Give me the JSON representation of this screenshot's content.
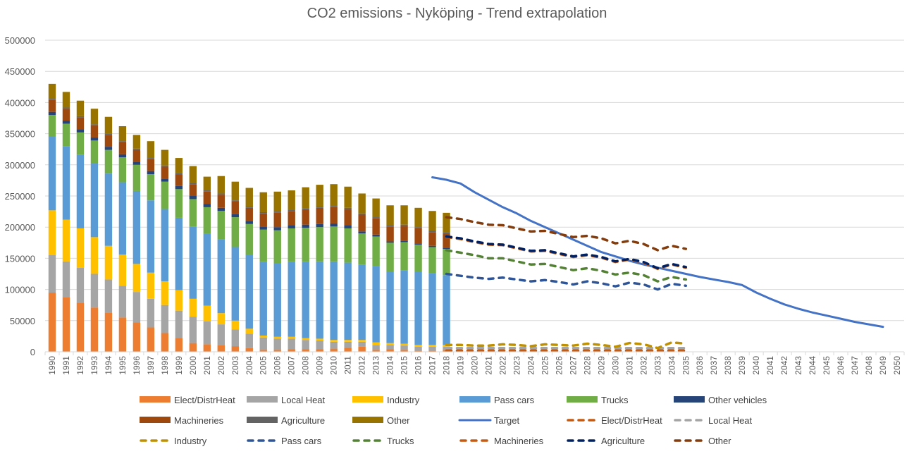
{
  "chart_data": {
    "type": "bar",
    "title": "CO2 emissions - Nyköping - Trend extrapolation",
    "xlabel": "",
    "ylabel": "",
    "ylim": [
      0,
      500000
    ],
    "yticks": [
      0,
      50000,
      100000,
      150000,
      200000,
      250000,
      300000,
      350000,
      400000,
      450000,
      500000
    ],
    "grid": true,
    "legend_position": "bottom",
    "categories": [
      "1990",
      "1991",
      "1992",
      "1993",
      "1994",
      "1995",
      "1996",
      "1997",
      "1998",
      "1999",
      "2000",
      "2001",
      "2002",
      "2003",
      "2004",
      "2005",
      "2006",
      "2007",
      "2008",
      "2009",
      "2010",
      "2011",
      "2012",
      "2013",
      "2014",
      "2015",
      "2016",
      "2017",
      "2018",
      "2019",
      "2020",
      "2021",
      "2022",
      "2023",
      "2024",
      "2025",
      "2026",
      "2027",
      "2028",
      "2029",
      "2030",
      "2031",
      "2032",
      "2033",
      "2034",
      "2035",
      "2036",
      "2037",
      "2038",
      "2039",
      "2040",
      "2041",
      "2042",
      "2043",
      "2044",
      "2045",
      "2046",
      "2047",
      "2048",
      "2049",
      "2050"
    ],
    "stacked_series": [
      {
        "name": "Elect/DistrHeat",
        "color": "#ED7D31",
        "values": [
          95000,
          88000,
          79000,
          71000,
          63000,
          55000,
          47000,
          39000,
          30000,
          22000,
          14000,
          12000,
          11000,
          9000,
          6000,
          3000,
          3000,
          4000,
          4000,
          4000,
          5000,
          7000,
          8000,
          3000,
          4000,
          3000,
          2000,
          2000,
          3000
        ]
      },
      {
        "name": "Local Heat",
        "color": "#A5A5A5",
        "values": [
          60000,
          57000,
          56000,
          54000,
          53000,
          51000,
          49000,
          46000,
          45000,
          44000,
          42000,
          37000,
          33000,
          27000,
          23000,
          20000,
          18000,
          17000,
          15000,
          14000,
          11000,
          9000,
          8000,
          8000,
          7000,
          7000,
          6000,
          6000,
          5000
        ]
      },
      {
        "name": "Industry",
        "color": "#FFC000",
        "values": [
          72000,
          67000,
          63000,
          59000,
          54000,
          50000,
          45000,
          42000,
          38000,
          33000,
          29000,
          25000,
          18000,
          14000,
          8000,
          3000,
          3000,
          3000,
          3000,
          3000,
          3000,
          3000,
          3000,
          4000,
          3000,
          3000,
          3000,
          3000,
          3000
        ]
      },
      {
        "name": "Pass cars",
        "color": "#5B9BD5",
        "values": [
          118000,
          118000,
          118000,
          118000,
          116000,
          116000,
          117000,
          116000,
          116000,
          116000,
          116000,
          115000,
          118000,
          118000,
          118000,
          118000,
          118000,
          120000,
          122000,
          124000,
          126000,
          124000,
          121000,
          122000,
          115000,
          118000,
          118000,
          115000,
          112000
        ]
      },
      {
        "name": "Trucks",
        "color": "#70AD47",
        "values": [
          35000,
          36000,
          36000,
          37000,
          38000,
          40000,
          42000,
          42000,
          44000,
          46000,
          44000,
          43000,
          46000,
          48000,
          50000,
          52000,
          53000,
          54000,
          55000,
          55000,
          56000,
          55000,
          50000,
          48000,
          46000,
          45000,
          43000,
          42000,
          42000
        ]
      },
      {
        "name": "Other vehicles",
        "color": "#264478",
        "values": [
          5000,
          5000,
          5000,
          5000,
          5000,
          5000,
          5000,
          5000,
          5000,
          5000,
          5000,
          5000,
          5000,
          5000,
          5000,
          5000,
          5000,
          5000,
          5000,
          5000,
          5000,
          5000,
          3000,
          3000,
          2000,
          2000,
          2000,
          2000,
          2000
        ]
      },
      {
        "name": "Machineries",
        "color": "#9E480E",
        "values": [
          19000,
          19000,
          19000,
          19000,
          19000,
          19000,
          19000,
          19000,
          19000,
          19000,
          19000,
          20000,
          21000,
          20000,
          21000,
          21000,
          23000,
          23000,
          24000,
          26000,
          26000,
          26000,
          27000,
          26000,
          24000,
          24000,
          24000,
          22000,
          23000
        ]
      },
      {
        "name": "Agriculture",
        "color": "#636363",
        "values": [
          2000,
          2000,
          2000,
          2000,
          2000,
          2000,
          2000,
          2000,
          2000,
          2000,
          2000,
          2000,
          2000,
          2000,
          2000,
          2000,
          2000,
          2000,
          2000,
          2000,
          2000,
          2000,
          2000,
          2000,
          2000,
          2000,
          2000,
          2000,
          2000
        ]
      },
      {
        "name": "Other",
        "color": "#997300",
        "values": [
          24000,
          25000,
          25000,
          25000,
          27000,
          24000,
          22000,
          27000,
          25000,
          24000,
          27000,
          22000,
          28000,
          30000,
          30000,
          32000,
          32000,
          31000,
          34000,
          35000,
          35000,
          34000,
          32000,
          30000,
          32000,
          31000,
          31000,
          32000,
          31000
        ]
      }
    ],
    "line_series": [
      {
        "name": "Target",
        "color": "#4472C4",
        "dash": false,
        "start": "2017",
        "values": [
          280000,
          276000,
          270000,
          256000,
          244000,
          232000,
          222000,
          210000,
          200000,
          190000,
          180000,
          170000,
          160000,
          153000,
          146000,
          140000,
          135000,
          130000,
          125000,
          120000,
          116000,
          112000,
          107000,
          95000,
          85000,
          76000,
          69000,
          63000,
          58000,
          53000,
          48000,
          44000,
          40000
        ]
      },
      {
        "name": "Elect/DistrHeat",
        "color": "#C55A11",
        "dash": true,
        "start": "2018",
        "values": [
          2000,
          2000,
          2000,
          2000,
          2000,
          2000,
          2000,
          2000,
          2000,
          2000,
          2000,
          2000,
          2000,
          2000,
          2000,
          2000,
          2000,
          2000
        ]
      },
      {
        "name": "Local Heat",
        "color": "#A5A5A5",
        "dash": true,
        "start": "2018",
        "values": [
          6000,
          6000,
          6000,
          6000,
          6000,
          6000,
          6000,
          6000,
          6000,
          6000,
          6000,
          6000,
          6000,
          6000,
          6000,
          6000,
          6000,
          6000
        ]
      },
      {
        "name": "Industry",
        "color": "#BF9000",
        "dash": true,
        "start": "2018",
        "values": [
          11000,
          11000,
          10000,
          10000,
          12000,
          11000,
          9000,
          12000,
          11000,
          10000,
          13000,
          11000,
          8000,
          14000,
          12000,
          6000,
          15000,
          13000
        ]
      },
      {
        "name": "Pass cars",
        "color": "#2F5597",
        "dash": true,
        "start": "2018",
        "values": [
          125000,
          122000,
          119000,
          117000,
          119000,
          116000,
          113000,
          115000,
          112000,
          108000,
          113000,
          110000,
          105000,
          111000,
          108000,
          100000,
          109000,
          106000
        ]
      },
      {
        "name": "Trucks",
        "color": "#548235",
        "dash": true,
        "start": "2018",
        "values": [
          163000,
          159000,
          155000,
          150000,
          150000,
          145000,
          140000,
          141000,
          136000,
          131000,
          134000,
          130000,
          124000,
          127000,
          123000,
          113000,
          120000,
          116000
        ]
      },
      {
        "name": "Machineries",
        "color": "#C55A11",
        "dash": true,
        "start": "2018",
        "values": [
          184000,
          181000,
          176000,
          172000,
          171000,
          166000,
          161000,
          162000,
          157000,
          152000,
          155000,
          151000,
          144000,
          148000,
          143000,
          133000,
          140000,
          135000
        ]
      },
      {
        "name": "Agriculture",
        "color": "#002060",
        "dash": true,
        "start": "2018",
        "values": [
          185000,
          182000,
          177000,
          173000,
          172000,
          167000,
          162000,
          163000,
          158000,
          153000,
          156000,
          152000,
          145000,
          149000,
          144000,
          134000,
          141000,
          136000
        ]
      },
      {
        "name": "Other",
        "color": "#843C0C",
        "dash": true,
        "start": "2018",
        "values": [
          216000,
          213000,
          208000,
          204000,
          203000,
          198000,
          193000,
          194000,
          189000,
          184000,
          186000,
          182000,
          174000,
          178000,
          173000,
          163000,
          170000,
          165000
        ]
      }
    ],
    "legend": [
      {
        "label": "Elect/DistrHeat",
        "kind": "box",
        "color": "#ED7D31"
      },
      {
        "label": "Local Heat",
        "kind": "box",
        "color": "#A5A5A5"
      },
      {
        "label": "Industry",
        "kind": "box",
        "color": "#FFC000"
      },
      {
        "label": "Pass cars",
        "kind": "box",
        "color": "#5B9BD5"
      },
      {
        "label": "Trucks",
        "kind": "box",
        "color": "#70AD47"
      },
      {
        "label": "Other vehicles",
        "kind": "box",
        "color": "#264478"
      },
      {
        "label": "Machineries",
        "kind": "box",
        "color": "#9E480E"
      },
      {
        "label": "Agriculture",
        "kind": "box",
        "color": "#636363"
      },
      {
        "label": "Other",
        "kind": "box",
        "color": "#997300"
      },
      {
        "label": "Target",
        "kind": "line",
        "color": "#4472C4"
      },
      {
        "label": "Elect/DistrHeat",
        "kind": "dash",
        "color": "#C55A11"
      },
      {
        "label": "Local Heat",
        "kind": "dash",
        "color": "#A5A5A5"
      },
      {
        "label": "Industry",
        "kind": "dash",
        "color": "#BF9000"
      },
      {
        "label": "Pass cars",
        "kind": "dash",
        "color": "#2F5597"
      },
      {
        "label": "Trucks",
        "kind": "dash",
        "color": "#548235"
      },
      {
        "label": "Machineries",
        "kind": "dash",
        "color": "#C55A11"
      },
      {
        "label": "Agriculture",
        "kind": "dash",
        "color": "#002060"
      },
      {
        "label": "Other",
        "kind": "dash",
        "color": "#843C0C"
      }
    ]
  }
}
